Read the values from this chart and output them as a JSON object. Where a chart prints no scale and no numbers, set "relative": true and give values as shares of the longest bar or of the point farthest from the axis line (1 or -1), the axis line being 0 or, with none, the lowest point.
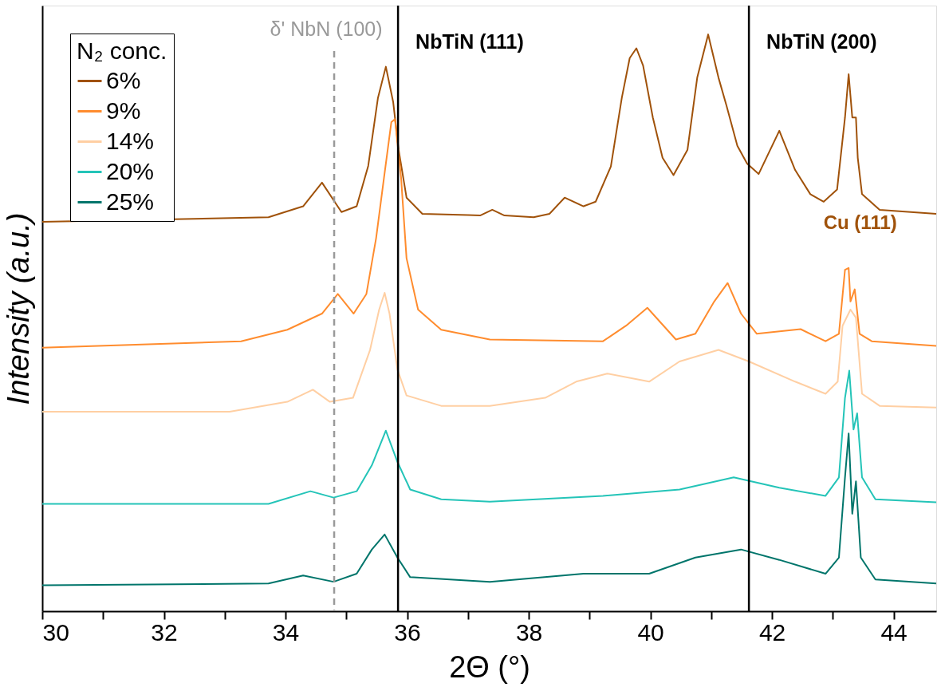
{
  "chart_data": {
    "type": "line",
    "relative": true,
    "xlabel": "2Θ (°)",
    "ylabel": "Intensity (a.u.)",
    "legend_title": "N₂ conc.",
    "legend": "top left",
    "grid": false,
    "marker": "none",
    "line_style": "solid",
    "xlim": [
      30,
      44.7
    ],
    "xticks": [
      30,
      {
        "value": 31,
        "label": null
      },
      32,
      {
        "value": 33,
        "label": null
      },
      34,
      {
        "value": 35,
        "label": null
      },
      36,
      {
        "value": 37,
        "label": null
      },
      38,
      {
        "value": 39,
        "label": null
      },
      40,
      {
        "value": 41,
        "label": null
      },
      42,
      {
        "value": 43,
        "label": null
      },
      44
    ],
    "series": [
      {
        "name": "6%",
        "color": "#a0520a",
        "x": [
          30,
          33.72,
          34.29,
          34.6,
          34.92,
          35.17,
          35.36,
          35.52,
          35.65,
          35.77,
          35.86,
          35.99,
          36.25,
          37.0,
          37.2,
          37.4,
          37.6,
          38.08,
          38.34,
          38.59,
          38.9,
          39.1,
          39.35,
          39.53,
          39.66,
          39.77,
          39.88,
          40.04,
          40.2,
          40.38,
          40.61,
          40.77,
          40.95,
          41.12,
          41.25,
          41.43,
          41.59,
          41.78,
          42.12,
          42.38,
          42.63,
          42.85,
          43.07,
          43.2,
          43.26,
          43.32,
          43.38,
          43.41,
          43.48,
          43.77,
          44.7
        ],
        "values": [
          0.675,
          0.683,
          0.702,
          0.743,
          0.692,
          0.702,
          0.772,
          0.89,
          0.944,
          0.883,
          0.8,
          0.717,
          0.689,
          0.687,
          0.686,
          0.696,
          0.686,
          0.683,
          0.689,
          0.717,
          0.702,
          0.71,
          0.771,
          0.89,
          0.959,
          0.976,
          0.946,
          0.856,
          0.786,
          0.756,
          0.8,
          0.925,
          1.0,
          0.925,
          0.877,
          0.807,
          0.776,
          0.758,
          0.833,
          0.765,
          0.723,
          0.71,
          0.731,
          0.856,
          0.931,
          0.856,
          0.856,
          0.786,
          0.723,
          0.696,
          0.689
        ]
      },
      {
        "name": "9%",
        "color": "#ff8c2e",
        "x": [
          30,
          33.27,
          34.03,
          34.6,
          34.86,
          35.12,
          35.33,
          35.49,
          35.62,
          35.74,
          35.8,
          35.9,
          35.99,
          36.18,
          36.56,
          37.36,
          39.22,
          39.6,
          39.95,
          40.42,
          40.74,
          41.05,
          41.27,
          41.49,
          41.75,
          42.47,
          42.88,
          43.1,
          43.2,
          43.26,
          43.29,
          43.36,
          43.44,
          43.64,
          44.7
        ],
        "values": [
          0.457,
          0.468,
          0.488,
          0.516,
          0.55,
          0.516,
          0.55,
          0.647,
          0.752,
          0.848,
          0.853,
          0.752,
          0.612,
          0.523,
          0.488,
          0.471,
          0.468,
          0.495,
          0.526,
          0.471,
          0.481,
          0.537,
          0.569,
          0.516,
          0.481,
          0.489,
          0.468,
          0.481,
          0.592,
          0.595,
          0.537,
          0.558,
          0.481,
          0.468,
          0.46
        ]
      },
      {
        "name": "14%",
        "color": "#ffcfa3",
        "x": [
          30,
          33.08,
          34.03,
          34.45,
          34.73,
          35.11,
          35.39,
          35.54,
          35.63,
          35.71,
          35.84,
          35.99,
          36.56,
          37.36,
          38.27,
          38.78,
          39.29,
          39.98,
          40.48,
          41.12,
          41.62,
          42.38,
          42.88,
          43.08,
          43.16,
          43.29,
          43.38,
          43.48,
          43.77,
          44.7
        ],
        "values": [
          0.346,
          0.346,
          0.363,
          0.384,
          0.363,
          0.37,
          0.453,
          0.523,
          0.552,
          0.516,
          0.419,
          0.374,
          0.356,
          0.356,
          0.37,
          0.398,
          0.412,
          0.398,
          0.433,
          0.453,
          0.433,
          0.398,
          0.377,
          0.398,
          0.495,
          0.523,
          0.509,
          0.377,
          0.356,
          0.353
        ]
      },
      {
        "name": "20%",
        "color": "#24c4b8",
        "x": [
          30,
          33.72,
          34.41,
          34.79,
          35.17,
          35.42,
          35.65,
          35.84,
          36.05,
          36.56,
          37.36,
          39.22,
          40.48,
          41.37,
          42.12,
          42.88,
          43.1,
          43.2,
          43.27,
          43.34,
          43.4,
          43.48,
          43.7,
          44.7
        ],
        "values": [
          0.186,
          0.186,
          0.208,
          0.197,
          0.208,
          0.253,
          0.313,
          0.259,
          0.211,
          0.194,
          0.19,
          0.2,
          0.211,
          0.232,
          0.214,
          0.2,
          0.232,
          0.37,
          0.417,
          0.315,
          0.343,
          0.232,
          0.194,
          0.189
        ]
      },
      {
        "name": "25%",
        "color": "#00756b",
        "x": [
          30,
          33.72,
          34.29,
          34.79,
          35.17,
          35.42,
          35.63,
          35.84,
          36.05,
          37.36,
          38.9,
          39.98,
          40.74,
          41.49,
          42.12,
          42.88,
          43.1,
          43.2,
          43.26,
          43.32,
          43.38,
          43.46,
          43.7,
          44.7
        ],
        "values": [
          0.045,
          0.048,
          0.062,
          0.051,
          0.065,
          0.107,
          0.133,
          0.093,
          0.059,
          0.051,
          0.065,
          0.065,
          0.093,
          0.107,
          0.089,
          0.065,
          0.093,
          0.232,
          0.308,
          0.169,
          0.225,
          0.093,
          0.055,
          0.048
        ]
      }
    ],
    "ref_lines": [
      {
        "axis": "x",
        "value": 34.8,
        "label": "δ' NbN (100)",
        "color": "#999999",
        "line_style": "dashed"
      },
      {
        "axis": "x",
        "value": 35.85,
        "label": "NbTiN (111)",
        "color": "#000000",
        "line_style": "solid"
      },
      {
        "axis": "x",
        "value": 41.62,
        "label": "NbTiN (200)",
        "color": "#000000",
        "line_style": "solid"
      }
    ],
    "annotations": [
      "Cu (111)"
    ]
  }
}
